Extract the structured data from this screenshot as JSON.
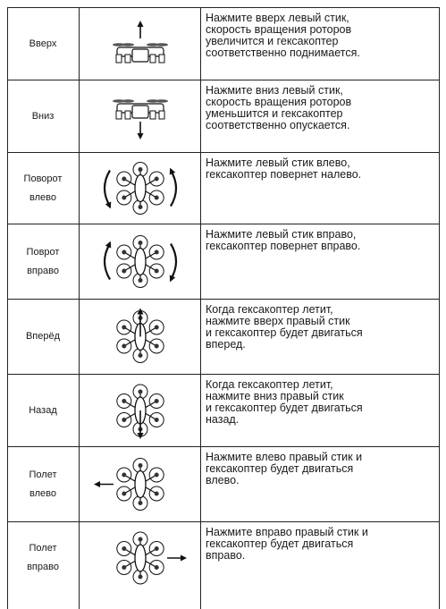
{
  "table": {
    "rows": [
      {
        "label": [
          "Вверх"
        ],
        "description": [
          "Нажмите вверх левый стик,",
          "скорость вращения роторов",
          "увеличится и гексакоптер",
          "соответственно поднимается."
        ]
      },
      {
        "label": [
          "Вниз"
        ],
        "description": [
          "Нажмите вниз левый стик,",
          "скорость вращения роторов",
          "уменьшится и гексакоптер",
          "соответственно опускается."
        ]
      },
      {
        "label": [
          "Поворот",
          "влево"
        ],
        "description": [
          "Нажмите левый стик влево,",
          "гексакоптер повернет налево."
        ]
      },
      {
        "label": [
          "Поврот",
          "вправо"
        ],
        "description": [
          "Нажмите левый стик вправо,",
          "гексакоптер повернет вправо."
        ]
      },
      {
        "label": [
          "Вперёд"
        ],
        "description": [
          "Когда гексакоптер летит,",
          "нажмите вверх правый стик",
          "и гексакоптер будет двигаться",
          "вперед."
        ]
      },
      {
        "label": [
          "Назад"
        ],
        "description": [
          "Когда гексакоптер летит,",
          "нажмите вниз правый стик",
          "и гексакоптер будет двигаться",
          "назад."
        ]
      },
      {
        "label": [
          "Полет",
          "влево"
        ],
        "description": [
          "Нажмите влево правый стик и",
          "гексакоптер будет двигаться",
          "влево."
        ]
      },
      {
        "label": [
          "Полет",
          "вправо"
        ],
        "description": [
          "Нажмите вправо правый стик и",
          "гексакоптер будет двигаться",
          "вправо."
        ]
      }
    ]
  }
}
